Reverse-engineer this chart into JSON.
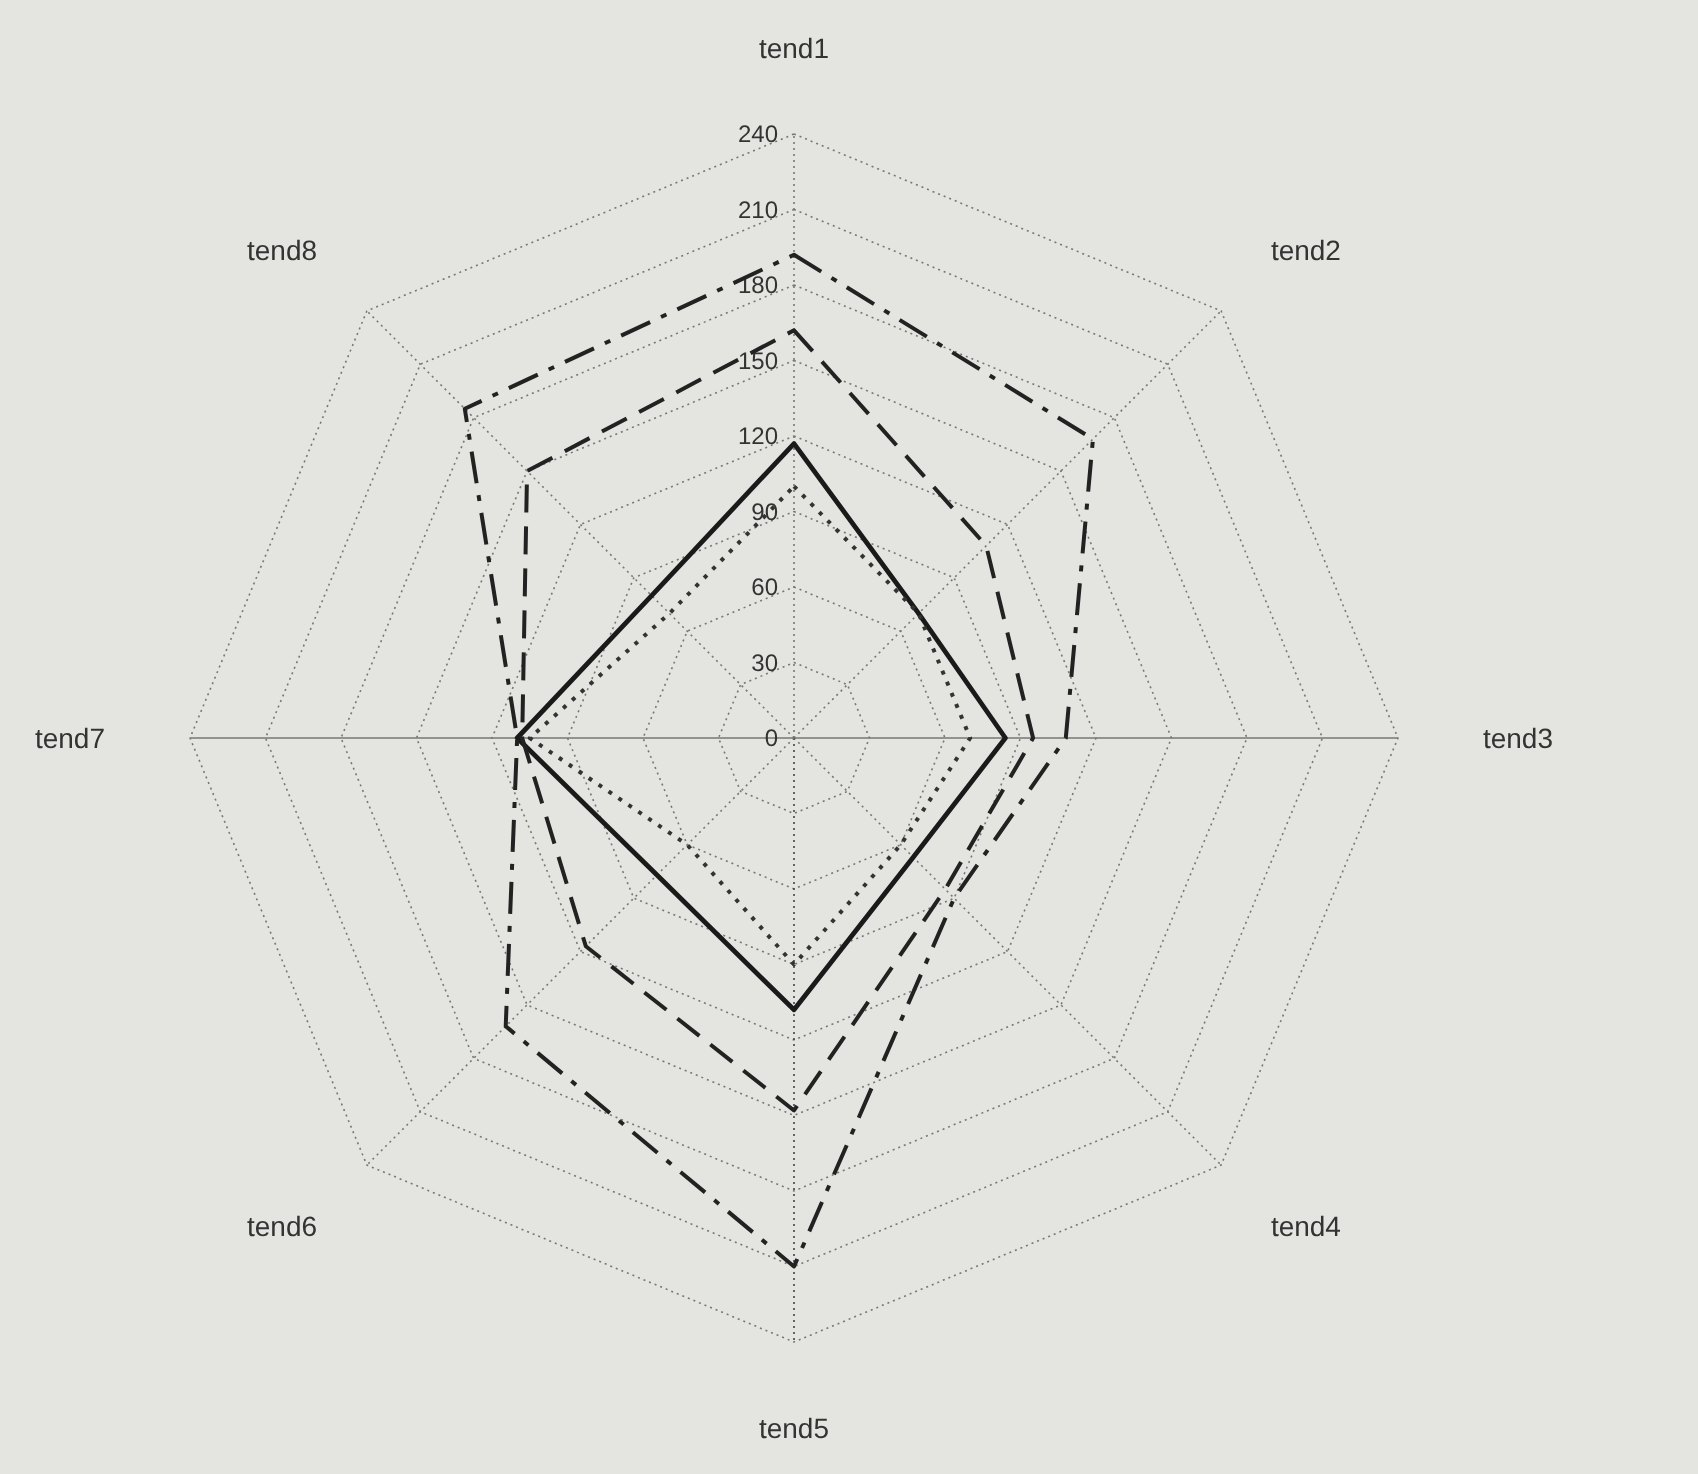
{
  "chart_data": {
    "type": "radar",
    "categories": [
      "tend1",
      "tend2",
      "tend3",
      "tend4",
      "tend5",
      "tend6",
      "tend7",
      "tend8"
    ],
    "ylim": [
      0,
      240
    ],
    "yticks": [
      0,
      30,
      60,
      90,
      120,
      150,
      180,
      210,
      240
    ],
    "grid": true,
    "marker": "none",
    "series": [
      {
        "color": "#1a1a1a",
        "line_style": "solid",
        "values": [
          117,
          70,
          84,
          67,
          108,
          77,
          110,
          80
        ]
      },
      {
        "color": "#222222",
        "line_style": "dashdot",
        "values": [
          192,
          168,
          108,
          90,
          210,
          162,
          110,
          185
        ]
      },
      {
        "color": "#222222",
        "line_style": "dashed",
        "values": [
          162,
          108,
          95,
          85,
          148,
          117,
          108,
          150
        ]
      },
      {
        "color": "#333333",
        "line_style": "dotted",
        "values": [
          100,
          70,
          70,
          60,
          90,
          60,
          105,
          70
        ]
      }
    ]
  }
}
